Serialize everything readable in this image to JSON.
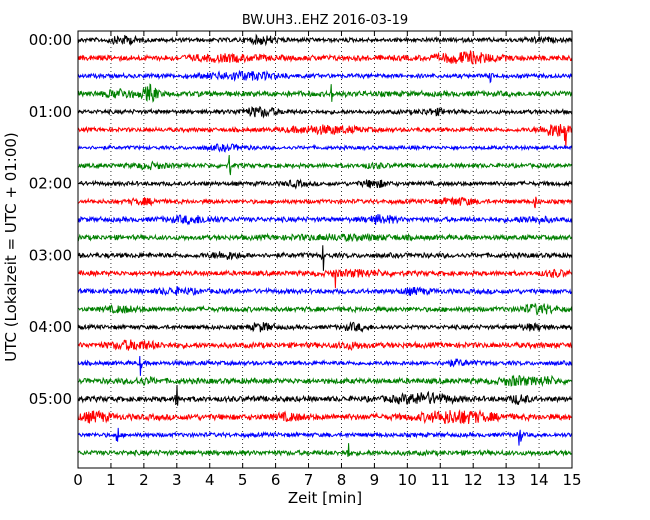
{
  "chart_data": {
    "type": "line",
    "title": "BW.UH3..EHZ 2016-03-19",
    "xlabel": "Zeit  [min]",
    "ylabel": "UTC (Lokalzeit = UTC + 01:00)",
    "xlim": [
      0,
      15
    ],
    "x_ticks": [
      "0",
      "1",
      "2",
      "3",
      "4",
      "5",
      "6",
      "7",
      "8",
      "9",
      "10",
      "11",
      "12",
      "13",
      "14",
      "15"
    ],
    "y_ticks": [
      "00:00",
      "01:00",
      "02:00",
      "03:00",
      "04:00",
      "05:00"
    ],
    "row_interval_min": 15,
    "grid": "vertical dotted at each minute",
    "trace_colors": [
      "#000000",
      "#ff0000",
      "#0000ff",
      "#008000"
    ],
    "rows": [
      {
        "start": "00:00",
        "color": "#000000",
        "amplitude": 0.35,
        "events": [
          [
            1.4,
            0.6,
            0.6
          ],
          [
            5.6,
            0.6,
            0.6
          ],
          [
            14.0,
            0.5,
            0.3
          ]
        ]
      },
      {
        "start": "00:15",
        "color": "#ff0000",
        "amplitude": 0.45,
        "events": [
          [
            11.8,
            1.2,
            0.8
          ],
          [
            4.5,
            1.5,
            0.4
          ]
        ]
      },
      {
        "start": "00:30",
        "color": "#0000ff",
        "amplitude": 0.35,
        "events": [
          [
            5.0,
            1.5,
            0.6
          ],
          [
            12.55,
            0.05,
            2.2
          ]
        ]
      },
      {
        "start": "00:45",
        "color": "#008000",
        "amplitude": 0.45,
        "events": [
          [
            1.3,
            0.6,
            0.6
          ],
          [
            2.2,
            0.3,
            1.3
          ],
          [
            7.7,
            0.05,
            1.6
          ]
        ]
      },
      {
        "start": "01:00",
        "color": "#000000",
        "amplitude": 0.35,
        "events": [
          [
            5.5,
            0.8,
            0.7
          ],
          [
            10.8,
            0.6,
            0.4
          ]
        ]
      },
      {
        "start": "01:15",
        "color": "#ff0000",
        "amplitude": 0.35,
        "events": [
          [
            7.5,
            1.5,
            0.6
          ],
          [
            14.5,
            0.6,
            1.1
          ],
          [
            14.8,
            0.05,
            3.0
          ]
        ]
      },
      {
        "start": "01:30",
        "color": "#0000ff",
        "amplitude": 0.3,
        "events": [
          [
            4.5,
            0.8,
            0.4
          ]
        ]
      },
      {
        "start": "01:45",
        "color": "#008000",
        "amplitude": 0.35,
        "events": [
          [
            2.2,
            0.7,
            0.4
          ],
          [
            4.6,
            0.05,
            2.5
          ],
          [
            9.0,
            0.5,
            0.3
          ]
        ]
      },
      {
        "start": "02:00",
        "color": "#000000",
        "amplitude": 0.35,
        "events": [
          [
            9.0,
            0.5,
            0.6
          ],
          [
            6.6,
            0.4,
            0.4
          ]
        ]
      },
      {
        "start": "02:15",
        "color": "#ff0000",
        "amplitude": 0.35,
        "events": [
          [
            2.0,
            0.6,
            0.4
          ],
          [
            11.5,
            0.8,
            0.5
          ],
          [
            13.9,
            0.05,
            1.8
          ]
        ]
      },
      {
        "start": "02:30",
        "color": "#0000ff",
        "amplitude": 0.4,
        "events": [
          [
            3.5,
            1.0,
            0.5
          ],
          [
            9.2,
            0.6,
            0.6
          ],
          [
            13.8,
            0.7,
            0.4
          ]
        ]
      },
      {
        "start": "02:45",
        "color": "#008000",
        "amplitude": 0.4,
        "events": [
          [
            8.0,
            2.5,
            0.3
          ]
        ]
      },
      {
        "start": "03:00",
        "color": "#000000",
        "amplitude": 0.4,
        "events": [
          [
            4.5,
            0.6,
            0.5
          ],
          [
            7.45,
            0.05,
            2.5
          ]
        ]
      },
      {
        "start": "03:15",
        "color": "#ff0000",
        "amplitude": 0.4,
        "events": [
          [
            7.8,
            0.05,
            3.0
          ],
          [
            14.5,
            0.5,
            0.4
          ],
          [
            8.5,
            1.2,
            0.4
          ]
        ]
      },
      {
        "start": "03:30",
        "color": "#0000ff",
        "amplitude": 0.4,
        "events": [
          [
            3.0,
            0.8,
            0.4
          ],
          [
            10.2,
            0.6,
            0.4
          ]
        ]
      },
      {
        "start": "03:45",
        "color": "#008000",
        "amplitude": 0.4,
        "events": [
          [
            1.3,
            0.7,
            0.4
          ],
          [
            14.0,
            0.7,
            0.7
          ]
        ]
      },
      {
        "start": "04:00",
        "color": "#000000",
        "amplitude": 0.35,
        "events": [
          [
            5.6,
            0.5,
            0.6
          ],
          [
            8.4,
            0.5,
            0.5
          ],
          [
            13.8,
            0.6,
            0.4
          ]
        ]
      },
      {
        "start": "04:15",
        "color": "#ff0000",
        "amplitude": 0.45,
        "events": [
          [
            1.7,
            1.0,
            0.6
          ],
          [
            8.3,
            0.6,
            0.4
          ]
        ]
      },
      {
        "start": "04:30",
        "color": "#0000ff",
        "amplitude": 0.35,
        "events": [
          [
            1.9,
            0.05,
            2.0
          ],
          [
            11.5,
            0.6,
            0.4
          ]
        ]
      },
      {
        "start": "04:45",
        "color": "#008000",
        "amplitude": 0.45,
        "events": [
          [
            2.0,
            0.5,
            0.4
          ],
          [
            13.3,
            0.7,
            0.6
          ],
          [
            14.2,
            0.5,
            0.5
          ]
        ]
      },
      {
        "start": "05:00",
        "color": "#000000",
        "amplitude": 0.45,
        "events": [
          [
            3.0,
            0.05,
            2.5
          ],
          [
            10.5,
            1.2,
            0.8
          ],
          [
            13.4,
            0.4,
            0.6
          ]
        ]
      },
      {
        "start": "05:15",
        "color": "#ff0000",
        "amplitude": 0.5,
        "events": [
          [
            0.5,
            0.6,
            0.7
          ],
          [
            11.5,
            1.5,
            0.9
          ],
          [
            6.4,
            0.6,
            0.4
          ]
        ]
      },
      {
        "start": "05:30",
        "color": "#0000ff",
        "amplitude": 0.35,
        "events": [
          [
            1.2,
            0.05,
            2.3
          ],
          [
            13.4,
            0.1,
            1.6
          ]
        ]
      },
      {
        "start": "05:45",
        "color": "#008000",
        "amplitude": 0.4,
        "events": [
          [
            8.2,
            0.05,
            1.8
          ]
        ]
      }
    ]
  }
}
